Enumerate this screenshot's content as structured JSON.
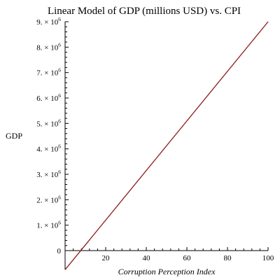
{
  "chart_data": {
    "type": "line",
    "title": "Linear Model of GDP (millions USD) vs. CPI",
    "xlabel": "Corruption Perception Index",
    "ylabel": "GDP",
    "xlim": [
      0,
      100
    ],
    "ylim": [
      -750000,
      9000000
    ],
    "x_ticks": [
      20,
      40,
      60,
      80,
      100
    ],
    "y_ticks": [
      {
        "value": 0,
        "coef": "0",
        "exp": ""
      },
      {
        "value": 1000000,
        "coef": "1. × 10",
        "exp": "6"
      },
      {
        "value": 2000000,
        "coef": "2. × 10",
        "exp": "6"
      },
      {
        "value": 3000000,
        "coef": "3. × 10",
        "exp": "6"
      },
      {
        "value": 4000000,
        "coef": "4. × 10",
        "exp": "6"
      },
      {
        "value": 5000000,
        "coef": "5. × 10",
        "exp": "6"
      },
      {
        "value": 6000000,
        "coef": "6. × 10",
        "exp": "6"
      },
      {
        "value": 7000000,
        "coef": "7. × 10",
        "exp": "6"
      },
      {
        "value": 8000000,
        "coef": "8. × 10",
        "exp": "6"
      },
      {
        "value": 9000000,
        "coef": "9. × 10",
        "exp": "6"
      }
    ],
    "series": [
      {
        "x": [
          0,
          100
        ],
        "y": [
          -750000,
          9000000
        ],
        "color": "#8b1a1a"
      }
    ],
    "grid": false,
    "legend": "none"
  }
}
